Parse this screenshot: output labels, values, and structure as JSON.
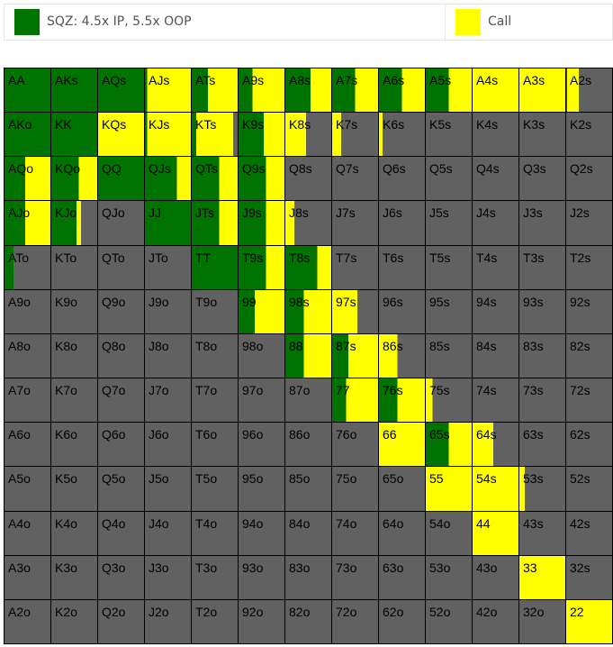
{
  "colors": {
    "sqz": "#007300",
    "call": "#ffff00",
    "fold": "#616161"
  },
  "legend": [
    {
      "key": "sqz",
      "label": "SQZ: 4.5x IP, 5.5x OOP"
    },
    {
      "key": "call",
      "label": "Call"
    }
  ],
  "ranks": [
    "A",
    "K",
    "Q",
    "J",
    "T",
    "9",
    "8",
    "7",
    "6",
    "5",
    "4",
    "3",
    "2"
  ],
  "frequencies": {
    "AA": {
      "sqz": 1.0,
      "call": 0
    },
    "AKs": {
      "sqz": 1.0,
      "call": 0
    },
    "AQs": {
      "sqz": 1.0,
      "call": 0
    },
    "AJs": {
      "sqz": 0.05,
      "call": 0.95
    },
    "ATs": {
      "sqz": 0.35,
      "call": 0.65
    },
    "A9s": {
      "sqz": 0.3,
      "call": 0.7
    },
    "A8s": {
      "sqz": 0.55,
      "call": 0.45
    },
    "A7s": {
      "sqz": 0.5,
      "call": 0.5
    },
    "A6s": {
      "sqz": 0.5,
      "call": 0.5
    },
    "A5s": {
      "sqz": 0.5,
      "call": 0.5
    },
    "A4s": {
      "sqz": 0,
      "call": 1.0
    },
    "A3s": {
      "sqz": 0,
      "call": 1.0
    },
    "A2s": {
      "sqz": 0.02,
      "call": 0.25
    },
    "AKo": {
      "sqz": 1.0,
      "call": 0
    },
    "KK": {
      "sqz": 1.0,
      "call": 0
    },
    "KQs": {
      "sqz": 0,
      "call": 1.0
    },
    "KJs": {
      "sqz": 0.05,
      "call": 0.95
    },
    "KTs": {
      "sqz": 0.1,
      "call": 0.8
    },
    "K9s": {
      "sqz": 0.55,
      "call": 0.45
    },
    "K8s": {
      "sqz": 0,
      "call": 0.45
    },
    "K7s": {
      "sqz": 0,
      "call": 0.2
    },
    "K6s": {
      "sqz": 0,
      "call": 0.08
    },
    "K5s": {
      "sqz": 0,
      "call": 0
    },
    "K4s": {
      "sqz": 0,
      "call": 0
    },
    "K3s": {
      "sqz": 0,
      "call": 0
    },
    "K2s": {
      "sqz": 0,
      "call": 0
    },
    "AQo": {
      "sqz": 0.45,
      "call": 0.55
    },
    "KQo": {
      "sqz": 0.6,
      "call": 0.4
    },
    "QQ": {
      "sqz": 1.0,
      "call": 0
    },
    "QJs": {
      "sqz": 0.7,
      "call": 0.3
    },
    "QTs": {
      "sqz": 0.6,
      "call": 0.4
    },
    "Q9s": {
      "sqz": 0.6,
      "call": 0.4
    },
    "Q8s": {
      "sqz": 0,
      "call": 0
    },
    "Q7s": {
      "sqz": 0,
      "call": 0
    },
    "Q6s": {
      "sqz": 0,
      "call": 0
    },
    "Q5s": {
      "sqz": 0,
      "call": 0
    },
    "Q4s": {
      "sqz": 0,
      "call": 0
    },
    "Q3s": {
      "sqz": 0,
      "call": 0
    },
    "Q2s": {
      "sqz": 0,
      "call": 0
    },
    "AJo": {
      "sqz": 0.45,
      "call": 0.55
    },
    "KJo": {
      "sqz": 0.55,
      "call": 0.1
    },
    "QJo": {
      "sqz": 0,
      "call": 0
    },
    "JJ": {
      "sqz": 1.0,
      "call": 0
    },
    "JTs": {
      "sqz": 0.6,
      "call": 0.4
    },
    "J9s": {
      "sqz": 0.6,
      "call": 0.4
    },
    "J8s": {
      "sqz": 0,
      "call": 0.2
    },
    "J7s": {
      "sqz": 0,
      "call": 0
    },
    "J6s": {
      "sqz": 0,
      "call": 0
    },
    "J5s": {
      "sqz": 0,
      "call": 0
    },
    "J4s": {
      "sqz": 0,
      "call": 0
    },
    "J3s": {
      "sqz": 0,
      "call": 0
    },
    "J2s": {
      "sqz": 0,
      "call": 0
    },
    "ATo": {
      "sqz": 0.2,
      "call": 0
    },
    "KTo": {
      "sqz": 0,
      "call": 0
    },
    "QTo": {
      "sqz": 0,
      "call": 0
    },
    "JTo": {
      "sqz": 0,
      "call": 0
    },
    "TT": {
      "sqz": 1.0,
      "call": 0
    },
    "T9s": {
      "sqz": 0.6,
      "call": 0.4
    },
    "T8s": {
      "sqz": 0.7,
      "call": 0.3
    },
    "T7s": {
      "sqz": 0,
      "call": 0
    },
    "T6s": {
      "sqz": 0,
      "call": 0
    },
    "T5s": {
      "sqz": 0,
      "call": 0
    },
    "T4s": {
      "sqz": 0,
      "call": 0
    },
    "T3s": {
      "sqz": 0,
      "call": 0
    },
    "T2s": {
      "sqz": 0,
      "call": 0
    },
    "A9o": {
      "sqz": 0,
      "call": 0
    },
    "K9o": {
      "sqz": 0,
      "call": 0
    },
    "Q9o": {
      "sqz": 0,
      "call": 0
    },
    "J9o": {
      "sqz": 0,
      "call": 0
    },
    "T9o": {
      "sqz": 0,
      "call": 0
    },
    "99": {
      "sqz": 0.35,
      "call": 0.65
    },
    "98s": {
      "sqz": 0.4,
      "call": 0.6
    },
    "97s": {
      "sqz": 0,
      "call": 0.55
    },
    "96s": {
      "sqz": 0,
      "call": 0
    },
    "95s": {
      "sqz": 0,
      "call": 0
    },
    "94s": {
      "sqz": 0,
      "call": 0
    },
    "93s": {
      "sqz": 0,
      "call": 0
    },
    "92s": {
      "sqz": 0,
      "call": 0
    },
    "A8o": {
      "sqz": 0,
      "call": 0
    },
    "K8o": {
      "sqz": 0,
      "call": 0
    },
    "Q8o": {
      "sqz": 0,
      "call": 0
    },
    "J8o": {
      "sqz": 0,
      "call": 0
    },
    "T8o": {
      "sqz": 0,
      "call": 0
    },
    "98o": {
      "sqz": 0,
      "call": 0
    },
    "88": {
      "sqz": 0.4,
      "call": 0.6
    },
    "87s": {
      "sqz": 0.35,
      "call": 0.65
    },
    "86s": {
      "sqz": 0,
      "call": 0.4
    },
    "85s": {
      "sqz": 0,
      "call": 0
    },
    "84s": {
      "sqz": 0,
      "call": 0
    },
    "83s": {
      "sqz": 0,
      "call": 0
    },
    "82s": {
      "sqz": 0,
      "call": 0
    },
    "A7o": {
      "sqz": 0,
      "call": 0
    },
    "K7o": {
      "sqz": 0,
      "call": 0
    },
    "Q7o": {
      "sqz": 0,
      "call": 0
    },
    "J7o": {
      "sqz": 0,
      "call": 0
    },
    "T7o": {
      "sqz": 0,
      "call": 0
    },
    "97o": {
      "sqz": 0,
      "call": 0
    },
    "87o": {
      "sqz": 0,
      "call": 0
    },
    "77": {
      "sqz": 0.3,
      "call": 0.7
    },
    "76s": {
      "sqz": 0.4,
      "call": 0.6
    },
    "75s": {
      "sqz": 0,
      "call": 0.15
    },
    "74s": {
      "sqz": 0,
      "call": 0
    },
    "73s": {
      "sqz": 0,
      "call": 0
    },
    "72s": {
      "sqz": 0,
      "call": 0
    },
    "A6o": {
      "sqz": 0,
      "call": 0
    },
    "K6o": {
      "sqz": 0,
      "call": 0
    },
    "Q6o": {
      "sqz": 0,
      "call": 0
    },
    "J6o": {
      "sqz": 0,
      "call": 0
    },
    "T6o": {
      "sqz": 0,
      "call": 0
    },
    "96o": {
      "sqz": 0,
      "call": 0
    },
    "86o": {
      "sqz": 0,
      "call": 0
    },
    "76o": {
      "sqz": 0,
      "call": 0
    },
    "66": {
      "sqz": 0,
      "call": 1.0
    },
    "65s": {
      "sqz": 0.5,
      "call": 0.5
    },
    "64s": {
      "sqz": 0,
      "call": 0.45
    },
    "63s": {
      "sqz": 0,
      "call": 0
    },
    "62s": {
      "sqz": 0,
      "call": 0
    },
    "A5o": {
      "sqz": 0,
      "call": 0
    },
    "K5o": {
      "sqz": 0,
      "call": 0
    },
    "Q5o": {
      "sqz": 0,
      "call": 0
    },
    "J5o": {
      "sqz": 0,
      "call": 0
    },
    "T5o": {
      "sqz": 0,
      "call": 0
    },
    "95o": {
      "sqz": 0,
      "call": 0
    },
    "85o": {
      "sqz": 0,
      "call": 0
    },
    "75o": {
      "sqz": 0,
      "call": 0
    },
    "65o": {
      "sqz": 0,
      "call": 0
    },
    "55": {
      "sqz": 0,
      "call": 1.0
    },
    "54s": {
      "sqz": 0,
      "call": 1.0
    },
    "53s": {
      "sqz": 0,
      "call": 0.12
    },
    "52s": {
      "sqz": 0,
      "call": 0
    },
    "A4o": {
      "sqz": 0,
      "call": 0
    },
    "K4o": {
      "sqz": 0,
      "call": 0
    },
    "Q4o": {
      "sqz": 0,
      "call": 0
    },
    "J4o": {
      "sqz": 0,
      "call": 0
    },
    "T4o": {
      "sqz": 0,
      "call": 0
    },
    "94o": {
      "sqz": 0,
      "call": 0
    },
    "84o": {
      "sqz": 0,
      "call": 0
    },
    "74o": {
      "sqz": 0,
      "call": 0
    },
    "64o": {
      "sqz": 0,
      "call": 0
    },
    "54o": {
      "sqz": 0,
      "call": 0
    },
    "44": {
      "sqz": 0,
      "call": 1.0
    },
    "43s": {
      "sqz": 0,
      "call": 0
    },
    "42s": {
      "sqz": 0,
      "call": 0
    },
    "A3o": {
      "sqz": 0,
      "call": 0
    },
    "K3o": {
      "sqz": 0,
      "call": 0
    },
    "Q3o": {
      "sqz": 0,
      "call": 0
    },
    "J3o": {
      "sqz": 0,
      "call": 0
    },
    "T3o": {
      "sqz": 0,
      "call": 0
    },
    "93o": {
      "sqz": 0,
      "call": 0
    },
    "83o": {
      "sqz": 0,
      "call": 0
    },
    "73o": {
      "sqz": 0,
      "call": 0
    },
    "63o": {
      "sqz": 0,
      "call": 0
    },
    "53o": {
      "sqz": 0,
      "call": 0
    },
    "43o": {
      "sqz": 0,
      "call": 0
    },
    "33": {
      "sqz": 0,
      "call": 1.0
    },
    "32s": {
      "sqz": 0,
      "call": 0
    },
    "A2o": {
      "sqz": 0,
      "call": 0
    },
    "K2o": {
      "sqz": 0,
      "call": 0
    },
    "Q2o": {
      "sqz": 0,
      "call": 0
    },
    "J2o": {
      "sqz": 0,
      "call": 0
    },
    "T2o": {
      "sqz": 0,
      "call": 0
    },
    "92o": {
      "sqz": 0,
      "call": 0
    },
    "82o": {
      "sqz": 0,
      "call": 0
    },
    "72o": {
      "sqz": 0,
      "call": 0
    },
    "62o": {
      "sqz": 0,
      "call": 0
    },
    "52o": {
      "sqz": 0,
      "call": 0
    },
    "42o": {
      "sqz": 0,
      "call": 0
    },
    "32o": {
      "sqz": 0,
      "call": 0
    },
    "22": {
      "sqz": 0,
      "call": 1.0
    }
  }
}
